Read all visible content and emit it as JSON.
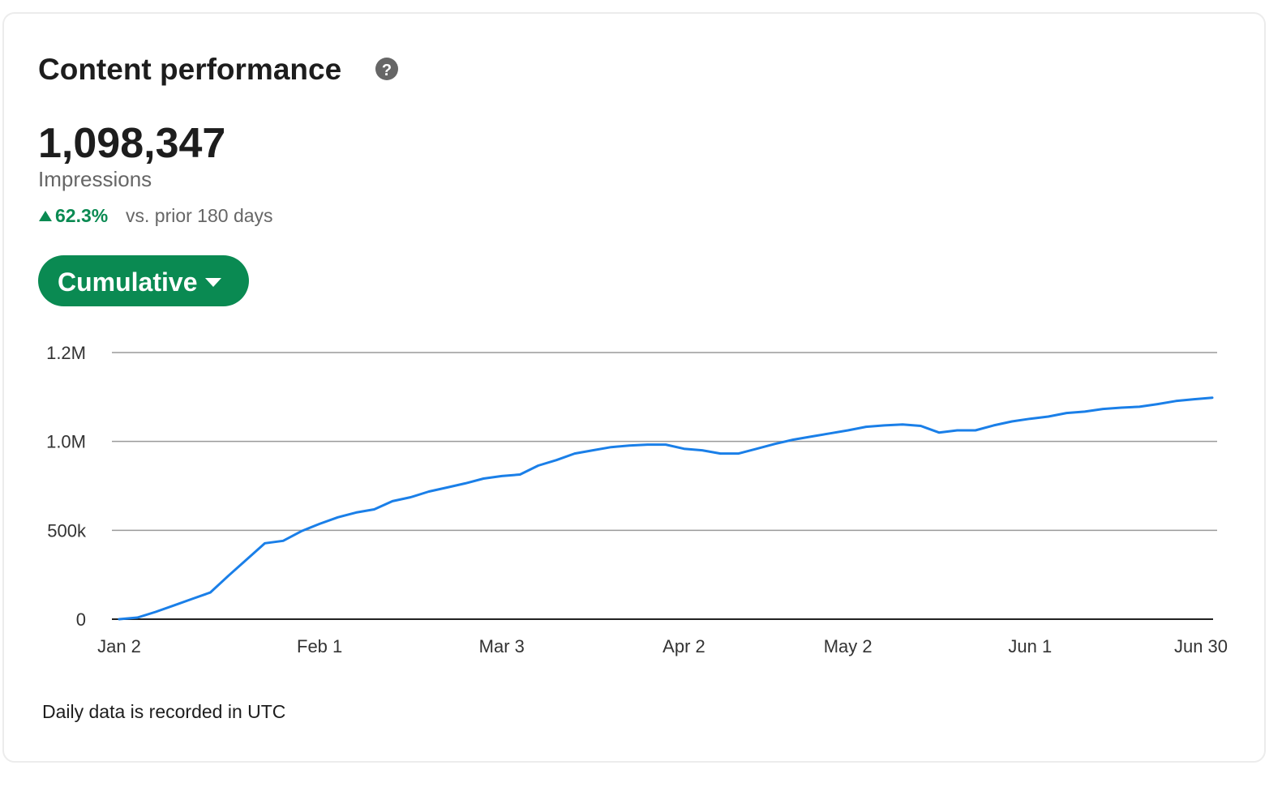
{
  "header": {
    "title": "Content performance"
  },
  "metric": {
    "value": "1,098,347",
    "label": "Impressions",
    "change": "62.3%",
    "change_text": "vs. prior 180 days"
  },
  "button": {
    "label": "Cumulative"
  },
  "footnote": "Daily data is recorded in UTC",
  "chart_data": {
    "type": "line",
    "categories": [
      "Jan 2",
      null,
      null,
      null,
      null,
      null,
      null,
      null,
      null,
      null,
      null,
      "Feb 1",
      null,
      null,
      null,
      null,
      null,
      null,
      null,
      null,
      null,
      "Mar 3",
      null,
      null,
      null,
      null,
      null,
      null,
      null,
      null,
      null,
      "Apr 2",
      null,
      null,
      null,
      null,
      null,
      null,
      null,
      null,
      "May 2",
      null,
      null,
      null,
      null,
      null,
      null,
      null,
      null,
      null,
      "Jun 1",
      null,
      null,
      null,
      null,
      null,
      null,
      null,
      null,
      null,
      "Jun 30"
    ],
    "values": [
      0,
      9000,
      41000,
      77000,
      114000,
      150000,
      245000,
      336000,
      427000,
      441000,
      495000,
      536000,
      573000,
      600000,
      618000,
      664000,
      686000,
      718000,
      741000,
      764000,
      791000,
      805000,
      814000,
      864000,
      895000,
      932000,
      950000,
      968000,
      977000,
      982000,
      982000,
      959000,
      950000,
      932000,
      932000,
      959000,
      986000,
      1004000,
      1011000,
      1018000,
      1025000,
      1033000,
      1036000,
      1038000,
      1035000,
      1020000,
      1025000,
      1025000,
      1036000,
      1045000,
      1051000,
      1056000,
      1064000,
      1067000,
      1073000,
      1076000,
      1078000,
      1084000,
      1091000,
      1095000,
      1098347
    ],
    "color": "#1a7fe8",
    "ylim": [
      0,
      1200000
    ],
    "yticks": [
      0,
      {
        "value": 500000,
        "label": "500k"
      },
      {
        "value": 1000000,
        "label": "1.0M"
      },
      {
        "value": 1200000,
        "label": "1.2M"
      }
    ],
    "grid": true
  }
}
